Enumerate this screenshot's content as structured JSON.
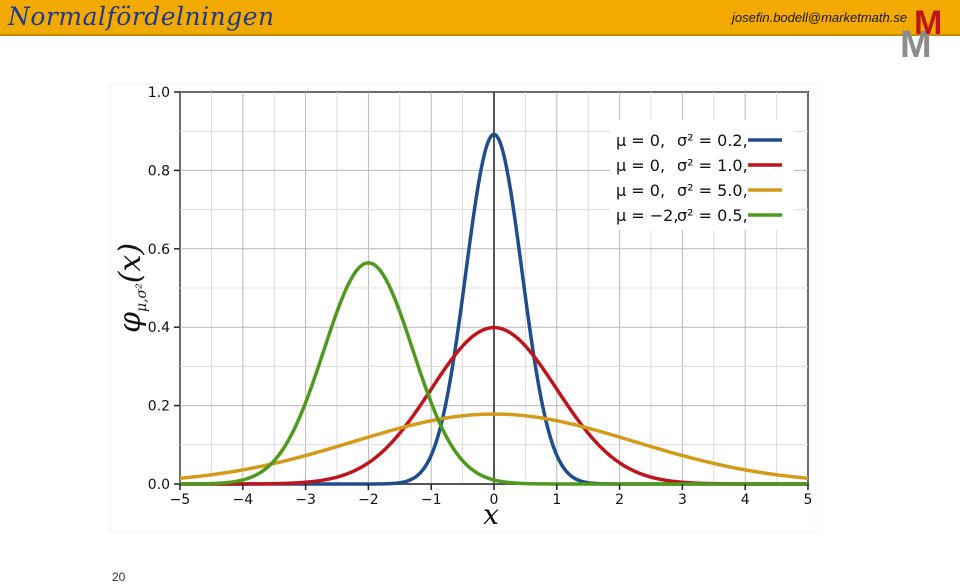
{
  "header": {
    "title": "Normalfördelningen",
    "email": "josefin.bodell@marketmath.se",
    "logo_text_top": "M",
    "logo_text_bottom": "M",
    "bar_color": "#f2a900"
  },
  "page_number": "20",
  "chart_data": {
    "type": "line",
    "title": "",
    "xlabel": "x",
    "ylabel": "φμ,σ²(x)",
    "ylabel_main": "φ",
    "ylabel_sub": "μ,σ²",
    "ylabel_tail": "(x)",
    "xlim": [
      -5,
      5
    ],
    "ylim": [
      0,
      1.0
    ],
    "xticks": [
      -5,
      -4,
      -3,
      -2,
      -1,
      0,
      1,
      2,
      3,
      4,
      5
    ],
    "xtick_labels": [
      "−5",
      "−4",
      "−3",
      "−2",
      "−1",
      "0",
      "1",
      "2",
      "3",
      "4",
      "5"
    ],
    "yticks": [
      0,
      0.2,
      0.4,
      0.6,
      0.8,
      1.0
    ],
    "ytick_labels": [
      "0.0",
      "0.2",
      "0.4",
      "0.6",
      "0.8",
      "1.0"
    ],
    "grid": true,
    "legend_position": "top-right",
    "series": [
      {
        "name": "μ = 0, σ² = 0.2,",
        "mu_label": "μ = 0,",
        "sigma_label": "σ² = 0.2,",
        "mu": 0,
        "variance": 0.2,
        "color": "#1f4e8c"
      },
      {
        "name": "μ = 0, σ² = 1.0,",
        "mu_label": "μ = 0,",
        "sigma_label": "σ² = 1.0,",
        "mu": 0,
        "variance": 1.0,
        "color": "#c0141d"
      },
      {
        "name": "μ = 0, σ² = 5.0,",
        "mu_label": "μ = 0,",
        "sigma_label": "σ² = 5.0,",
        "mu": 0,
        "variance": 5.0,
        "color": "#d49a1a"
      },
      {
        "name": "μ = −2, σ² = 0.5,",
        "mu_label": "μ = −2,",
        "sigma_label": "σ² = 0.5,",
        "mu": -2,
        "variance": 0.5,
        "color": "#4e9a1c"
      }
    ]
  }
}
